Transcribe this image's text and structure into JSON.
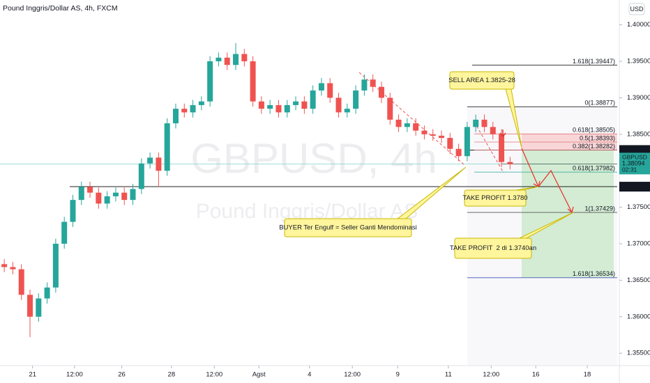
{
  "chart_data": {
    "type": "candlestick",
    "title": "Pound Inggris/Dollar AS, 4h, FXCM",
    "currency_button": "USD",
    "watermark": {
      "symbol": "GBPUSD, 4h",
      "name": "Pound Inggris/Dollar AS"
    },
    "colors": {
      "up": "#26a69a",
      "down": "#ef5350"
    },
    "open": [
      1.3672,
      1.3668,
      1.3665,
      1.363,
      1.36,
      1.3625,
      1.364,
      1.37,
      1.373,
      1.376,
      1.3778,
      1.377,
      1.3755,
      1.3765,
      1.377,
      1.376,
      1.3775,
      1.381,
      1.3818,
      1.38,
      1.3865,
      1.3885,
      1.388,
      1.389,
      1.3895,
      1.395,
      1.3955,
      1.3945,
      1.396,
      1.395,
      1.3895,
      1.3885,
      1.389,
      1.388,
      1.389,
      1.3895,
      1.3885,
      1.391,
      1.392,
      1.39,
      1.388,
      1.3885,
      1.391,
      1.3925,
      1.3915,
      1.39,
      1.387,
      1.386,
      1.3865,
      1.3855,
      1.385,
      1.3848,
      1.3845,
      1.383,
      1.382,
      1.386,
      1.387,
      1.386,
      1.385,
      1.3812
    ],
    "high": [
      1.3679,
      1.3675,
      1.3672,
      1.3637,
      1.3632,
      1.3647,
      1.3707,
      1.3737,
      1.3767,
      1.3785,
      1.3785,
      1.3777,
      1.3772,
      1.3777,
      1.3777,
      1.3782,
      1.3817,
      1.3825,
      1.3825,
      1.3872,
      1.3892,
      1.3892,
      1.3897,
      1.3902,
      1.3957,
      1.3962,
      1.3962,
      1.3975,
      1.3967,
      1.3957,
      1.3902,
      1.3897,
      1.3897,
      1.3897,
      1.3902,
      1.3902,
      1.3917,
      1.3927,
      1.3927,
      1.3907,
      1.3892,
      1.3917,
      1.3932,
      1.3932,
      1.3922,
      1.3907,
      1.3877,
      1.3872,
      1.3872,
      1.3862,
      1.3857,
      1.3855,
      1.3852,
      1.3837,
      1.3867,
      1.3877,
      1.3877,
      1.3867,
      1.3857,
      1.3819
    ],
    "low": [
      1.3661,
      1.3658,
      1.3623,
      1.3572,
      1.3593,
      1.3618,
      1.3633,
      1.3693,
      1.3723,
      1.3753,
      1.3763,
      1.3748,
      1.3748,
      1.3758,
      1.3753,
      1.3753,
      1.3768,
      1.3803,
      1.3778,
      1.3793,
      1.3858,
      1.3873,
      1.3873,
      1.3883,
      1.3888,
      1.3943,
      1.3938,
      1.3938,
      1.3943,
      1.3888,
      1.3878,
      1.3878,
      1.3873,
      1.3873,
      1.3883,
      1.3878,
      1.3878,
      1.3903,
      1.3893,
      1.3873,
      1.3873,
      1.3878,
      1.3903,
      1.3908,
      1.3893,
      1.3863,
      1.3853,
      1.3853,
      1.3848,
      1.3843,
      1.3841,
      1.3838,
      1.3823,
      1.3813,
      1.3813,
      1.3853,
      1.3853,
      1.3843,
      1.3805,
      1.3802
    ],
    "close": [
      1.3668,
      1.3665,
      1.363,
      1.36,
      1.3625,
      1.364,
      1.37,
      1.373,
      1.376,
      1.3778,
      1.377,
      1.3755,
      1.3765,
      1.377,
      1.376,
      1.3775,
      1.381,
      1.3818,
      1.38,
      1.3865,
      1.3885,
      1.388,
      1.389,
      1.3895,
      1.395,
      1.3955,
      1.3945,
      1.396,
      1.395,
      1.3895,
      1.3885,
      1.389,
      1.388,
      1.389,
      1.3895,
      1.3885,
      1.391,
      1.392,
      1.39,
      1.388,
      1.3885,
      1.391,
      1.3925,
      1.3915,
      1.39,
      1.387,
      1.386,
      1.3865,
      1.3855,
      1.385,
      1.3848,
      1.3845,
      1.383,
      1.382,
      1.386,
      1.387,
      1.386,
      1.385,
      1.3812,
      1.3809
    ],
    "xlim": [
      -0.5,
      71.5
    ],
    "xticks": [
      {
        "value": 3.3,
        "label": "21"
      },
      {
        "value": 8.2,
        "label": "12:00"
      },
      {
        "value": 13.7,
        "label": "26"
      },
      {
        "value": 19.5,
        "label": "28"
      },
      {
        "value": 24.5,
        "label": "12:00"
      },
      {
        "value": 29.7,
        "label": "Agst"
      },
      {
        "value": 35.6,
        "label": "4"
      },
      {
        "value": 40.6,
        "label": "12:00"
      },
      {
        "value": 45.9,
        "label": "9"
      },
      {
        "value": 51.8,
        "label": "11"
      },
      {
        "value": 56.8,
        "label": "12:00"
      },
      {
        "value": 62,
        "label": "16"
      },
      {
        "value": 68,
        "label": "18"
      }
    ],
    "ylim": [
      1.3533,
      1.4034
    ],
    "yticks": [
      {
        "value": 1.355,
        "label": "1.35500"
      },
      {
        "value": 1.36,
        "label": "1.36000"
      },
      {
        "value": 1.365,
        "label": "1.36500"
      },
      {
        "value": 1.37,
        "label": "1.37000"
      },
      {
        "value": 1.375,
        "label": "1.37500"
      },
      {
        "value": 1.38,
        "label": "1.38000"
      },
      {
        "value": 1.385,
        "label": "1.38500"
      },
      {
        "value": 1.39,
        "label": "1.39000"
      },
      {
        "value": 1.395,
        "label": "1.39500"
      },
      {
        "value": 1.4,
        "label": "1.40000"
      }
    ],
    "fib_levels": [
      {
        "value": 1.39447,
        "label": "1.618(1.39447)"
      },
      {
        "value": 1.38877,
        "label": "0(1.38877)"
      },
      {
        "value": 1.38505,
        "label": "0.618(1.38505)"
      },
      {
        "value": 1.38393,
        "label": "0.5(1.38393)"
      },
      {
        "value": 1.38282,
        "label": "0.382(1.38282)"
      },
      {
        "value": 1.37982,
        "label": "0.618(1.37982)"
      },
      {
        "value": 1.37429,
        "label": "1(1.37429)"
      },
      {
        "value": 1.36534,
        "label": "1.618(1.36534)"
      }
    ],
    "zones": [
      {
        "top": 1.38505,
        "bottom": 1.38282,
        "color": "#f8d0d0"
      },
      {
        "top": 1.38282,
        "bottom": 1.36534,
        "color": "#cdeacb"
      }
    ],
    "price_tags": [
      1.38284,
      1.38092,
      1.37782
    ],
    "last_price": {
      "symbol": "GBPUSD",
      "value": 1.38094,
      "countdown": "02:31"
    },
    "annotations": {
      "sell_area": "SELL AREA 1.3825-28",
      "take_profit_1": "TAKE PROFIT 1.3780",
      "take_profit_2": "TAKE PROFIT  2 di 1.3740an",
      "buyer": "BUYER Ter Engulf = Seller Ganti Mendominasi"
    }
  }
}
